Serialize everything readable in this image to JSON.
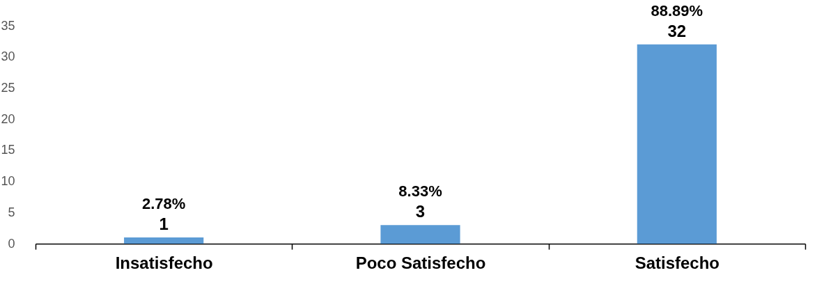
{
  "chart_data": {
    "type": "bar",
    "categories": [
      "Insatisfecho",
      "Poco Satisfecho",
      "Satisfecho"
    ],
    "values": [
      1,
      3,
      32
    ],
    "color": "#5b9bd5",
    "ylim": [
      0,
      35
    ],
    "yticks": [
      0,
      5,
      10,
      15,
      20,
      25,
      30,
      35
    ],
    "grid": false,
    "data_labels": true,
    "annotations": [
      {
        "text": "2.78%",
        "x": "Insatisfecho",
        "y": 1
      },
      {
        "text": "8.33%",
        "x": "Poco Satisfecho",
        "y": 3
      },
      {
        "text": "88.89%",
        "x": "Satisfecho",
        "y": 32
      }
    ]
  }
}
